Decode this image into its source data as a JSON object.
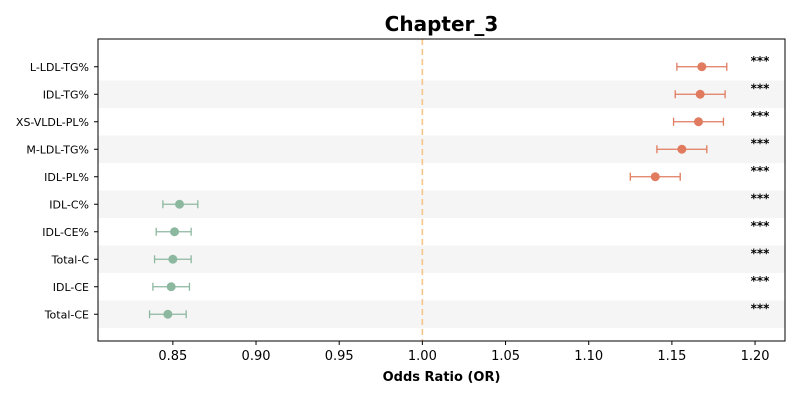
{
  "chart_data": {
    "type": "scatter",
    "subtype": "forest-plot",
    "title": "Chapter_3",
    "xlabel": "Odds Ratio (OR)",
    "ylabel": "",
    "xlim": [
      0.805,
      1.218
    ],
    "xticks": [
      0.85,
      0.9,
      0.95,
      1.0,
      1.05,
      1.1,
      1.15,
      1.2
    ],
    "xtick_labels": [
      "0.85",
      "0.90",
      "0.95",
      "1.00",
      "1.05",
      "1.10",
      "1.15",
      "1.20"
    ],
    "reference_line": {
      "x": 1.0,
      "style": "dashed",
      "color": "#f5c48a"
    },
    "grid": false,
    "alternating_row_shading": true,
    "row_shade_color": "#f5f5f5",
    "colors": {
      "positive": "#e07b5f",
      "negative": "#8db8a0"
    },
    "points": [
      {
        "label": "L-LDL-TG%",
        "or": 1.168,
        "ci_low": 1.153,
        "ci_high": 1.183,
        "sig": "***",
        "direction": "positive"
      },
      {
        "label": "IDL-TG%",
        "or": 1.167,
        "ci_low": 1.152,
        "ci_high": 1.182,
        "sig": "***",
        "direction": "positive"
      },
      {
        "label": "XS-VLDL-PL%",
        "or": 1.166,
        "ci_low": 1.151,
        "ci_high": 1.181,
        "sig": "***",
        "direction": "positive"
      },
      {
        "label": "M-LDL-TG%",
        "or": 1.156,
        "ci_low": 1.141,
        "ci_high": 1.171,
        "sig": "***",
        "direction": "positive"
      },
      {
        "label": "IDL-PL%",
        "or": 1.14,
        "ci_low": 1.125,
        "ci_high": 1.155,
        "sig": "***",
        "direction": "positive"
      },
      {
        "label": "IDL-C%",
        "or": 0.854,
        "ci_low": 0.844,
        "ci_high": 0.865,
        "sig": "***",
        "direction": "negative"
      },
      {
        "label": "IDL-CE%",
        "or": 0.851,
        "ci_low": 0.84,
        "ci_high": 0.861,
        "sig": "***",
        "direction": "negative"
      },
      {
        "label": "Total-C",
        "or": 0.85,
        "ci_low": 0.839,
        "ci_high": 0.861,
        "sig": "***",
        "direction": "negative"
      },
      {
        "label": "IDL-CE",
        "or": 0.849,
        "ci_low": 0.838,
        "ci_high": 0.86,
        "sig": "***",
        "direction": "negative"
      },
      {
        "label": "Total-CE",
        "or": 0.847,
        "ci_low": 0.836,
        "ci_high": 0.858,
        "sig": "***",
        "direction": "negative"
      }
    ]
  }
}
